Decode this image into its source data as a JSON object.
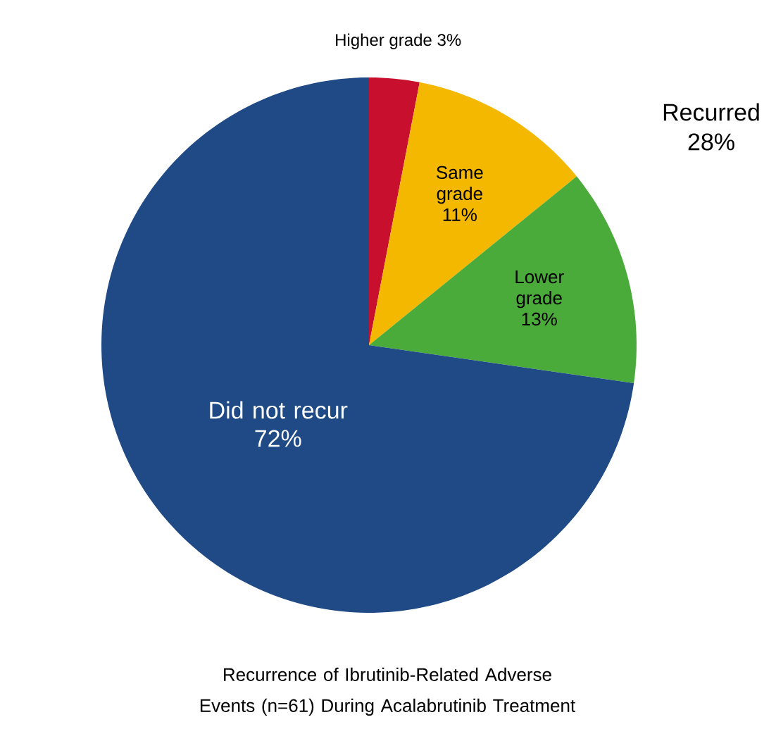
{
  "chart_data": {
    "type": "pie",
    "title": "Recurrence of Ibrutinib-Related Adverse Events (n=61) During Acalabrutinib Treatment",
    "categories": [
      "Higher grade",
      "Same grade",
      "Lower grade",
      "Did not recur"
    ],
    "values": [
      3,
      11,
      13,
      72
    ],
    "value_labels": [
      "3%",
      "11%",
      "13%",
      "72%"
    ],
    "colors": [
      "#c8102e",
      "#f5b800",
      "#4aab3a",
      "#1f4a85"
    ],
    "annotations": [
      "Recurred 28%"
    ]
  }
}
